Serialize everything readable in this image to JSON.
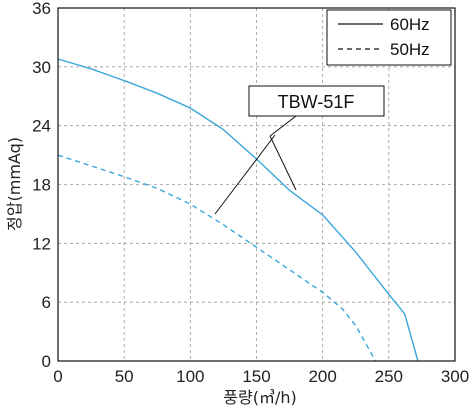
{
  "chart_data": {
    "type": "line",
    "xlabel": "풍량(㎥/h)",
    "ylabel": "정압(mmAq)",
    "xlim": [
      0,
      300
    ],
    "ylim": [
      0,
      36
    ],
    "xticks": [
      0,
      50,
      100,
      150,
      200,
      250,
      300
    ],
    "yticks": [
      0,
      6,
      12,
      18,
      24,
      30,
      36
    ],
    "grid": true,
    "legend_position": "top-right",
    "colors": {
      "curve": "#3aa6dc",
      "grid": "#999999",
      "axis": "#111111",
      "text": "#222222"
    },
    "series": [
      {
        "name": "60Hz",
        "style": "solid",
        "points": [
          [
            0,
            30.8
          ],
          [
            25,
            29.8
          ],
          [
            50,
            28.6
          ],
          [
            75,
            27.3
          ],
          [
            100,
            25.8
          ],
          [
            125,
            23.6
          ],
          [
            150,
            20.6
          ],
          [
            175,
            17.4
          ],
          [
            200,
            14.9
          ],
          [
            225,
            11.1
          ],
          [
            250,
            6.8
          ],
          [
            262,
            4.8
          ],
          [
            272,
            0
          ]
        ]
      },
      {
        "name": "50Hz",
        "style": "dashed",
        "points": [
          [
            0,
            21.0
          ],
          [
            25,
            19.9
          ],
          [
            50,
            18.8
          ],
          [
            75,
            17.6
          ],
          [
            100,
            16.0
          ],
          [
            125,
            13.9
          ],
          [
            150,
            11.6
          ],
          [
            175,
            9.3
          ],
          [
            200,
            7.0
          ],
          [
            215,
            5.3
          ],
          [
            225,
            3.6
          ],
          [
            235,
            1.2
          ],
          [
            240,
            0
          ]
        ]
      }
    ],
    "annotation": {
      "text": "TBW-51F"
    }
  }
}
